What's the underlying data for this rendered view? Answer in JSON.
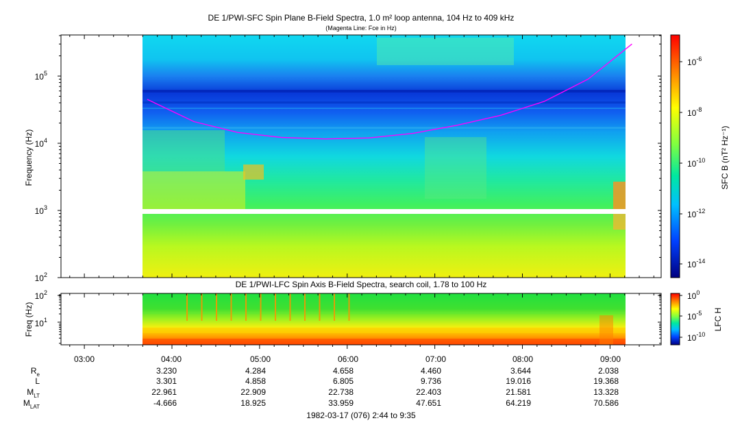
{
  "top_panel": {
    "title": "DE 1/PWI-SFC  Spin Plane B-Field Spectra, 1.0 m² loop antenna, 104 Hz to 409 kHz",
    "subtitle": "(Magenta Line: Fce in Hz)",
    "ylabel": "Frequency (Hz)",
    "y_ticks": [
      "10",
      "10",
      "10",
      "10"
    ],
    "y_tick_exps": [
      "2",
      "3",
      "4",
      "5"
    ],
    "colorbar_label": "SFC B (nT² Hz⁻¹)",
    "colorbar_ticks": [
      "10",
      "10",
      "10",
      "10",
      "10"
    ],
    "colorbar_exps": [
      "-6",
      "-8",
      "-10",
      "-12",
      "-14"
    ]
  },
  "bottom_panel": {
    "title": "DE 1/PWI-LFC  Spin Axis B-Field Spectra, search coil, 1.78 to 100 Hz",
    "ylabel": "Freq (Hz)",
    "y_ticks": [
      "10",
      "10"
    ],
    "y_tick_exps": [
      "2",
      "1"
    ],
    "colorbar_label": "LFC H",
    "colorbar_ticks": [
      "10",
      "10",
      "10"
    ],
    "colorbar_exps": [
      "0",
      "-5",
      "-10"
    ]
  },
  "x_ticks": [
    "03:00",
    "04:00",
    "05:00",
    "06:00",
    "07:00",
    "08:00",
    "09:00"
  ],
  "ephemeris": {
    "rows": [
      {
        "label": "R",
        "sub": "e",
        "values": [
          "3.230",
          "4.284",
          "4.658",
          "4.460",
          "3.644",
          "2.038"
        ]
      },
      {
        "label": "L",
        "sub": "",
        "values": [
          "3.301",
          "4.858",
          "6.805",
          "9.736",
          "19.016",
          "19.368"
        ]
      },
      {
        "label": "M",
        "sub": "LT",
        "values": [
          "22.961",
          "22.909",
          "22.738",
          "22.403",
          "21.581",
          "13.328"
        ]
      },
      {
        "label": "M",
        "sub": "LAT",
        "values": [
          "-4.666",
          "18.925",
          "33.959",
          "47.651",
          "64.219",
          "70.586"
        ]
      }
    ]
  },
  "footer": "1982-03-17 (076) 2:44 to 9:35",
  "chart_data": [
    {
      "type": "heatmap",
      "title": "DE 1/PWI-SFC  Spin Plane B-Field Spectra, 1.0 m² loop antenna, 104 Hz to 409 kHz",
      "subtitle": "(Magenta Line: Fce in Hz)",
      "xlabel": "",
      "ylabel": "Frequency (Hz)",
      "y_scale": "log",
      "ylim": [
        100,
        409000
      ],
      "xlim": [
        "02:44",
        "09:35"
      ],
      "data_start": "03:43",
      "data_end": "09:15",
      "colorbar": {
        "label": "SFC B (nT² Hz⁻¹)",
        "scale": "log",
        "range": [
          1e-15,
          1e-05
        ]
      },
      "series": [
        {
          "name": "Fce in Hz",
          "color": "#ff00ff",
          "x": [
            "03:43",
            "04:15",
            "04:45",
            "05:15",
            "05:45",
            "06:15",
            "06:45",
            "07:15",
            "07:45",
            "08:15",
            "08:45",
            "09:15"
          ],
          "y": [
            45000,
            21000,
            14500,
            12200,
            11600,
            12000,
            14000,
            18500,
            26000,
            42000,
            90000,
            300000
          ]
        }
      ]
    },
    {
      "type": "heatmap",
      "title": "DE 1/PWI-LFC  Spin Axis B-Field Spectra, search coil, 1.78 to 100 Hz",
      "xlabel": "",
      "ylabel": "Freq (Hz)",
      "y_scale": "log",
      "ylim": [
        1.78,
        100
      ],
      "xlim": [
        "02:44",
        "09:35"
      ],
      "data_start": "03:43",
      "data_end": "09:15",
      "colorbar": {
        "label": "LFC H",
        "scale": "log",
        "range": [
          1e-12,
          1
        ]
      }
    }
  ],
  "colors": {
    "fce_line": "#ff00ff"
  }
}
